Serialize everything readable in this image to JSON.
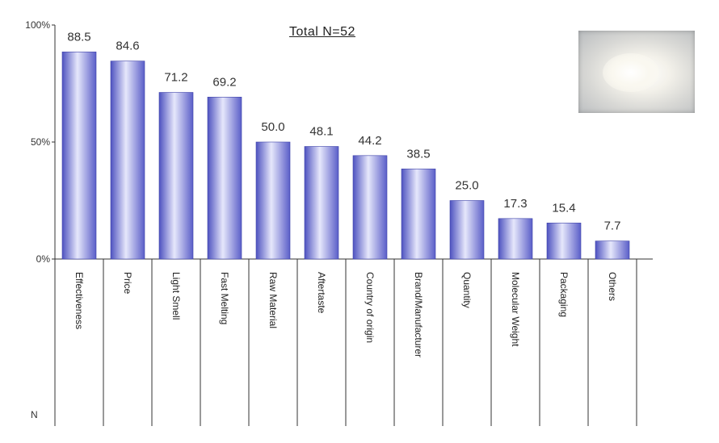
{
  "total_label": "Total N=52",
  "chart_data": {
    "type": "bar",
    "categories": [
      "Effectiveness",
      "Price",
      "Light Smell",
      "Fast Melting",
      "Raw Material",
      "Aftertaste",
      "Country of origin",
      "Brand/Manufacturer",
      "Quantity",
      "Molecular Weight",
      "Packaging",
      "Others"
    ],
    "values": [
      88.5,
      84.6,
      71.2,
      69.2,
      50.0,
      48.1,
      44.2,
      38.5,
      25.0,
      17.3,
      15.4,
      7.7
    ],
    "value_labels": [
      "88.5",
      "84.6",
      "71.2",
      "69.2",
      "50.0",
      "48.1",
      "44.2",
      "38.5",
      "25.0",
      "17.3",
      "15.4",
      "7.7"
    ],
    "yticks": [
      "0%",
      "50%",
      "100%"
    ],
    "ylim": [
      0,
      100
    ],
    "n_label": "N",
    "bar_color": "#6b6fd0",
    "grid": false
  }
}
